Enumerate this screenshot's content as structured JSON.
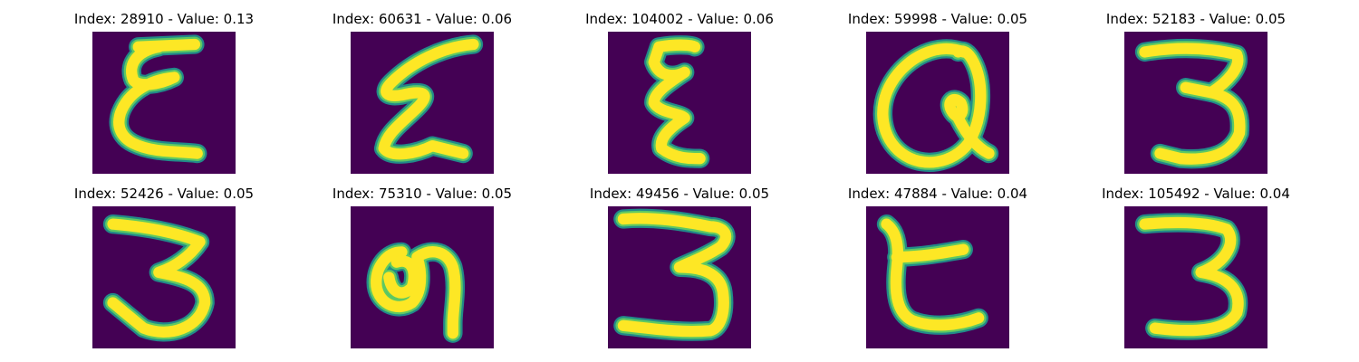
{
  "figure": {
    "colormap": [
      "#440154",
      "#21918c",
      "#5ec962",
      "#fde725"
    ],
    "panels": [
      {
        "index": "28910",
        "value": "0.13",
        "title": "Index: 28910 - Value: 0.13",
        "glyph": "E-loops"
      },
      {
        "index": "60631",
        "value": "0.06",
        "title": "Index: 60631 - Value: 0.06",
        "glyph": "E-slanted"
      },
      {
        "index": "104002",
        "value": "0.06",
        "title": "Index: 104002 - Value: 0.06",
        "glyph": "E-narrow"
      },
      {
        "index": "59998",
        "value": "0.05",
        "title": "Index: 59998 - Value: 0.05",
        "glyph": "Q-loop"
      },
      {
        "index": "52183",
        "value": "0.05",
        "title": "Index: 52183 - Value: 0.05",
        "glyph": "three"
      },
      {
        "index": "52426",
        "value": "0.05",
        "title": "Index: 52426 - Value: 0.05",
        "glyph": "three-bold"
      },
      {
        "index": "75310",
        "value": "0.05",
        "title": "Index: 75310 - Value: 0.05",
        "glyph": "nine-blob"
      },
      {
        "index": "49456",
        "value": "0.05",
        "title": "Index: 49456 - Value: 0.05",
        "glyph": "three-wide"
      },
      {
        "index": "47884",
        "value": "0.04",
        "title": "Index: 47884 - Value: 0.04",
        "glyph": "C-bold"
      },
      {
        "index": "105492",
        "value": "0.04",
        "title": "Index: 105492 - Value: 0.04",
        "glyph": "three-thick"
      }
    ]
  }
}
